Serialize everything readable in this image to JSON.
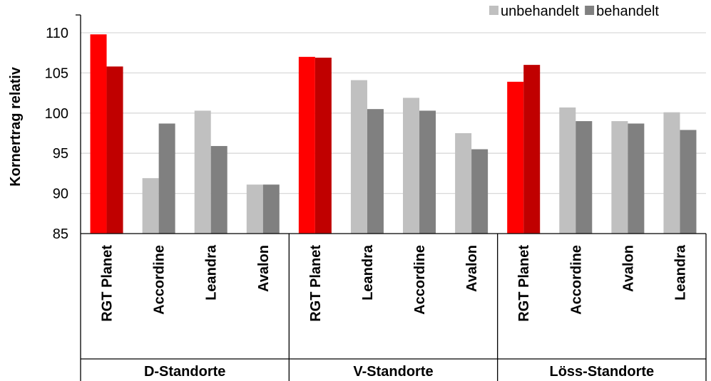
{
  "chart_data": {
    "type": "bar",
    "ylabel": "Kornertrag relativ",
    "ylim": [
      85,
      110
    ],
    "yticks": [
      85,
      90,
      95,
      100,
      105,
      110
    ],
    "grid": true,
    "legend_position": "top-right",
    "series": [
      {
        "name": "unbehandelt",
        "color": "#c0c0c0",
        "highlight_color": "#ff0000",
        "values": [
          109.8,
          91.9,
          100.3,
          91.1,
          107.0,
          104.1,
          101.9,
          97.5,
          103.9,
          100.7,
          99.0,
          100.1
        ]
      },
      {
        "name": "behandelt",
        "color": "#808080",
        "highlight_color": "#c00000",
        "values": [
          105.8,
          98.7,
          95.9,
          91.1,
          106.9,
          100.5,
          100.3,
          95.5,
          106.0,
          99.0,
          98.7,
          97.9
        ]
      }
    ],
    "categories": [
      "RGT Planet",
      "Accordine",
      "Leandra",
      "Avalon",
      "RGT Planet",
      "Leandra",
      "Accordine",
      "Avalon",
      "RGT Planet",
      "Accordine",
      "Avalon",
      "Leandra"
    ],
    "highlight_category": "RGT Planet",
    "groups": [
      {
        "label": "D-Standorte",
        "count": 4
      },
      {
        "label": "V-Standorte",
        "count": 4
      },
      {
        "label": "Löss-Standorte",
        "count": 4
      }
    ]
  }
}
